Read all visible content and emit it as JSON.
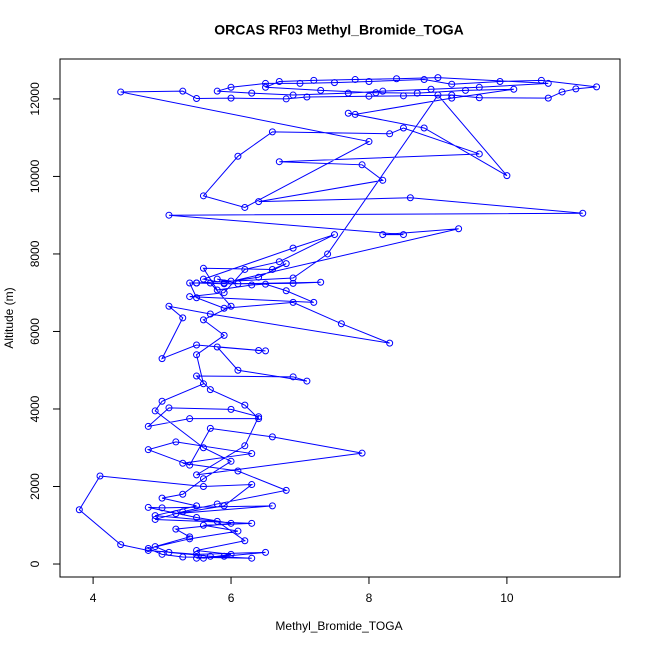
{
  "chart_data": {
    "type": "line",
    "title": "ORCAS RF03 Methyl_Bromide_TOGA",
    "x_label": "Methyl_Bromide_TOGA",
    "y_label": "Altitude (m)",
    "color": "#0000ff",
    "xlim": [
      3.52,
      11.64
    ],
    "ylim": [
      -335,
      13030
    ],
    "xticks": [
      4,
      6,
      8,
      10
    ],
    "yticks": [
      0,
      2000,
      4000,
      6000,
      8000,
      10000,
      12000
    ],
    "x": [
      5.5,
      5.9,
      6.5,
      5.5,
      4.8,
      4.4,
      3.8,
      4.1,
      5.6,
      6.3,
      5.9,
      5.2,
      6.6,
      5.0,
      4.8,
      5.5,
      6.0,
      5.2,
      5.4,
      4.9,
      5.1,
      5.7,
      6.3,
      5.3,
      5.0,
      4.8,
      5.4,
      6.1,
      5.6,
      6.3,
      4.9,
      5.3,
      5.8,
      6.8,
      6.1,
      5.3,
      6.3,
      5.2,
      4.8,
      5.4,
      5.7,
      6.6,
      7.9,
      5.5,
      6.2,
      6.4,
      6.0,
      5.1,
      4.8,
      5.4,
      6.4,
      6.2,
      5.7,
      5.5,
      6.9,
      7.1,
      6.1,
      5.8,
      6.4,
      6.5,
      5.5,
      5.0,
      5.3,
      5.1,
      5.7,
      8.3,
      7.6,
      6.9,
      5.9,
      5.5,
      5.4,
      5.5,
      5.9,
      6.9,
      7.3,
      6.1,
      5.8,
      6.0,
      6.4,
      6.8,
      6.6,
      5.6,
      5.8,
      6.3,
      6.5,
      6.8,
      7.2,
      5.4,
      5.9,
      6.2,
      6.7,
      7.5,
      6.9,
      5.6,
      5.9,
      9.3,
      8.2,
      8.5,
      5.1,
      11.1,
      8.6,
      6.4,
      8.2,
      7.9,
      6.7,
      9.6,
      8.5,
      8.3,
      6.6,
      6.1,
      5.6,
      6.2,
      8.0,
      4.4,
      5.3,
      5.5,
      6.0,
      6.8,
      7.1,
      8.0,
      8.5,
      9.2,
      9.6,
      10.6,
      10.8,
      11.0,
      11.3,
      10.5,
      9.9,
      9.2,
      8.8,
      8.0,
      7.5,
      7.0,
      6.5,
      6.0,
      5.8,
      6.3,
      6.9,
      7.7,
      8.2,
      8.9,
      9.6,
      10.6,
      9.0,
      8.4,
      7.8,
      7.2,
      6.7,
      6.5,
      7.3,
      8.1,
      8.7,
      9.4,
      10.1,
      9.2,
      7.8,
      7.7,
      8.8,
      10.0,
      9.0,
      7.4,
      6.9,
      5.5,
      5.7,
      6.0,
      5.6,
      5.9,
      5.5,
      5.6,
      5.0,
      4.9,
      5.6,
      6.0,
      5.6,
      5.3,
      5.0,
      5.5,
      4.9,
      5.8,
      6.2,
      5.5,
      6.0,
      5.6
    ],
    "values": [
      150,
      200,
      300,
      250,
      350,
      500,
      1400,
      2270,
      2000,
      2050,
      1500,
      1300,
      1500,
      1450,
      1460,
      1200,
      1050,
      900,
      700,
      450,
      300,
      200,
      150,
      180,
      250,
      400,
      650,
      850,
      1000,
      1050,
      1150,
      1350,
      1550,
      1900,
      2400,
      2600,
      2850,
      3150,
      2950,
      2550,
      3500,
      3280,
      2860,
      2300,
      3050,
      3800,
      3990,
      4030,
      3550,
      3750,
      3750,
      4100,
      4500,
      4850,
      4830,
      4720,
      5000,
      5600,
      5510,
      5500,
      5650,
      5300,
      6350,
      6650,
      6450,
      5700,
      6200,
      6750,
      6600,
      6870,
      7250,
      7250,
      7230,
      7240,
      7270,
      7230,
      7350,
      7300,
      7400,
      7750,
      7600,
      7630,
      7070,
      7200,
      7220,
      7050,
      6750,
      6900,
      7000,
      7600,
      7800,
      8500,
      8150,
      7350,
      7250,
      8650,
      8500,
      8500,
      9000,
      9050,
      9450,
      9350,
      9900,
      10300,
      10380,
      10580,
      11250,
      11100,
      11150,
      10520,
      9500,
      9200,
      10900,
      12180,
      12200,
      12010,
      12020,
      12000,
      12050,
      12070,
      12080,
      12100,
      12030,
      12020,
      12180,
      12260,
      12310,
      12480,
      12450,
      12380,
      12500,
      12450,
      12420,
      12400,
      12400,
      12300,
      12200,
      12150,
      12100,
      12150,
      12200,
      12250,
      12300,
      12400,
      12550,
      12520,
      12500,
      12480,
      12450,
      12300,
      12220,
      12160,
      12150,
      12220,
      12250,
      12020,
      11600,
      11630,
      11250,
      10020,
      12100,
      8000,
      7380,
      7250,
      7250,
      6650,
      6300,
      5900,
      5400,
      4650,
      4200,
      3950,
      3000,
      2650,
      2200,
      1800,
      1700,
      1500,
      1250,
      1100,
      600,
      350,
      250,
      150
    ]
  }
}
